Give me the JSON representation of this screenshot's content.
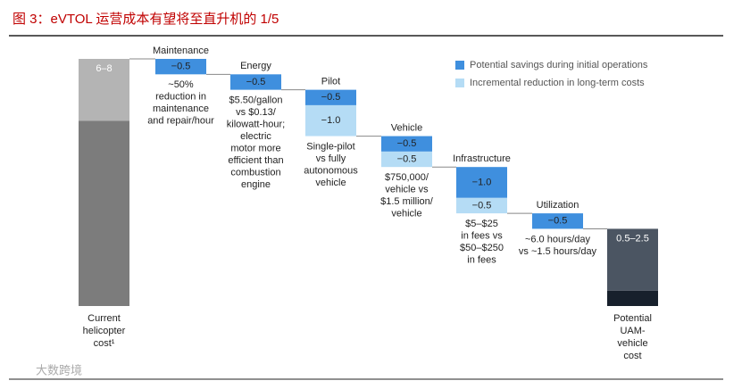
{
  "chart_data": {
    "type": "waterfall",
    "title": "图 3：eVTOL 运营成本有望将至直升机的 1/5",
    "ylim": [
      0,
      8
    ],
    "series": [
      {
        "name": "Potential savings during initial operations",
        "color": "#3f8fde"
      },
      {
        "name": "Incremental reduction in long-term costs",
        "color": "#b5dcf5"
      }
    ],
    "start": {
      "label": [
        "Current",
        "helicopter",
        "cost¹"
      ],
      "low": 6,
      "high": 8,
      "value_label": "6–8",
      "colors": [
        "#7c7c7c",
        "#b4b4b4"
      ]
    },
    "steps": [
      {
        "name": "Maintenance",
        "values": [
          -0.5
        ],
        "value_labels": [
          "−0.5"
        ],
        "note": [
          "~50%",
          "reduction in",
          "maintenance",
          "and repair/hour"
        ]
      },
      {
        "name": "Energy",
        "values": [
          -0.5
        ],
        "value_labels": [
          "−0.5"
        ],
        "note": [
          "$5.50/gallon",
          "vs $0.13/",
          "kilowatt-hour;",
          "electric",
          "motor more",
          "efficient than",
          "combustion",
          "engine"
        ]
      },
      {
        "name": "Pilot",
        "values": [
          -0.5,
          -1.0
        ],
        "value_labels": [
          "−0.5",
          "−1.0"
        ],
        "note": [
          "Single-pilot",
          "vs fully",
          "autonomous",
          "vehicle"
        ]
      },
      {
        "name": "Vehicle",
        "values": [
          -0.5,
          -0.5
        ],
        "value_labels": [
          "−0.5",
          "−0.5"
        ],
        "note": [
          "$750,000/",
          "vehicle vs",
          "$1.5 million/",
          "vehicle"
        ]
      },
      {
        "name": "Infrastructure",
        "values": [
          -1.0,
          -0.5
        ],
        "value_labels": [
          "−1.0",
          "−0.5"
        ],
        "note": [
          "$5–$25",
          "in fees vs",
          "$50–$250",
          "in fees"
        ]
      },
      {
        "name": "Utilization",
        "values": [
          -0.5
        ],
        "value_labels": [
          "−0.5"
        ],
        "note": [
          "~6.0 hours/day",
          "vs ~1.5 hours/day"
        ]
      }
    ],
    "end": {
      "label": [
        "Potential",
        "UAM-",
        "vehicle",
        "cost"
      ],
      "low": 0.5,
      "high": 2.5,
      "value_label": "0.5–2.5",
      "colors": [
        "#17202c",
        "#4b5562"
      ]
    },
    "watermark": "大数跨境"
  }
}
